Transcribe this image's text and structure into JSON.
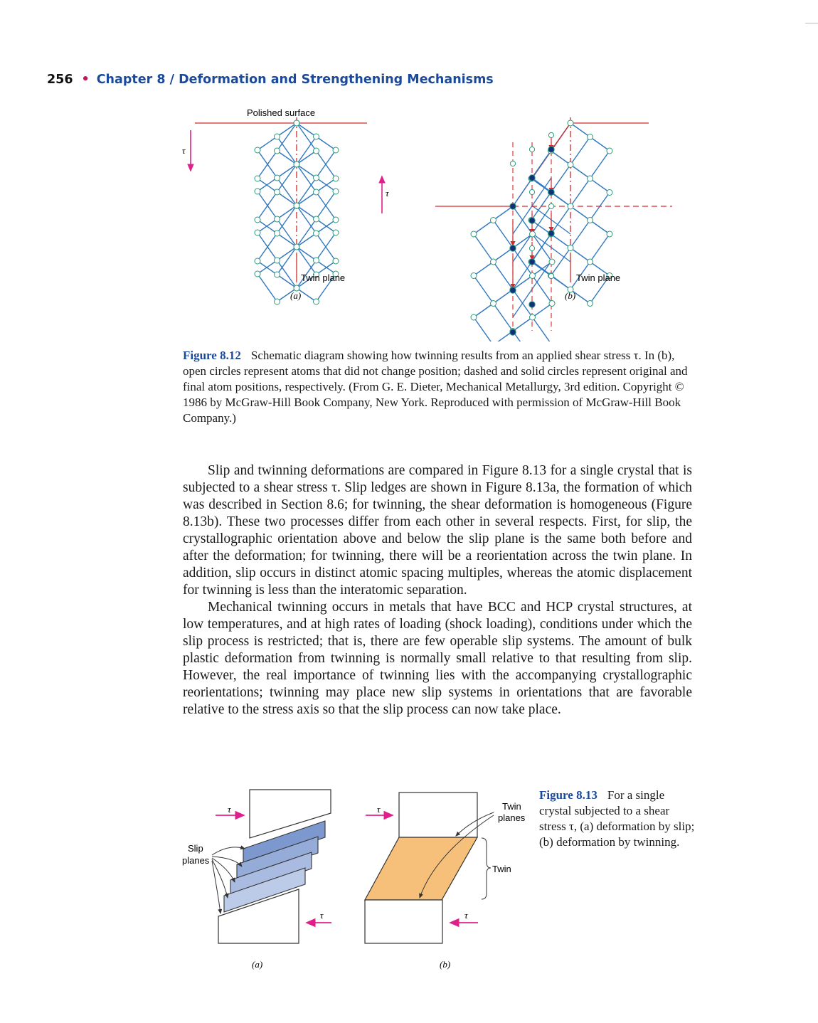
{
  "header": {
    "page_number": "256",
    "separator": "•",
    "chapter": "Chapter 8 / Deformation and Strengthening Mechanisms"
  },
  "figure_812": {
    "surface_label": "Polished surface",
    "twin_plane_label": "Twin plane",
    "tau": "τ",
    "panel_a": "(a)",
    "panel_b": "(b)",
    "caption_label": "Figure 8.12",
    "caption_text": "Schematic diagram showing how twinning results from an applied shear stress τ. In (b), open circles represent atoms that did not change position; dashed and solid circles represent original and final atom positions, respectively. (From G. E. Dieter, Mechanical Metallurgy, 3rd edition. Copyright © 1986 by McGraw-Hill Book Company, New York. Reproduced with permission of McGraw-Hill Book Company.)",
    "colors": {
      "lattice": "#2f77c0",
      "stress": "#e0208a",
      "plane": "#d22a2a",
      "atom_fill": "#10307a"
    }
  },
  "body": {
    "paragraphs": [
      "Slip and twinning deformations are compared in Figure 8.13 for a single crystal that is subjected to a shear stress τ. Slip ledges are shown in Figure 8.13a, the formation of which was described in Section 8.6; for twinning, the shear deformation is homogeneous (Figure 8.13b). These two processes differ from each other in several respects. First, for slip, the crystallographic orientation above and below the slip plane is the same both before and after the deformation; for twinning, there will be a reorientation across the twin plane. In addition, slip occurs in distinct atomic spacing multiples, whereas the atomic displacement for twinning is less than the interatomic separation.",
      "Mechanical twinning occurs in metals that have BCC and HCP crystal structures, at low temperatures, and at high rates of loading (shock loading), conditions under which the slip process is restricted; that is, there are few operable slip systems. The amount of bulk plastic deformation from twinning is normally small relative to that resulting from slip. However, the real importance of twinning lies with the accompanying crystallographic reorientations; twinning may place new slip systems in orientations that are favorable relative to the stress axis so that the slip process can now take place."
    ]
  },
  "figure_813": {
    "tau": "τ",
    "slip_planes_line1": "Slip",
    "slip_planes_line2": "planes",
    "twin_planes_line1": "Twin",
    "twin_planes_line2": "planes",
    "twin_label": "Twin",
    "panel_a": "(a)",
    "panel_b": "(b)",
    "caption_label": "Figure 8.13",
    "caption_text": "For a single crystal subjected to a shear stress τ, (a) deformation by slip; (b) deformation by twinning.",
    "colors": {
      "slip_dark": "#7d98cf",
      "slip_light": "#c6d2ec",
      "twin_fill": "#f7c07a",
      "stress": "#e0208a"
    }
  }
}
